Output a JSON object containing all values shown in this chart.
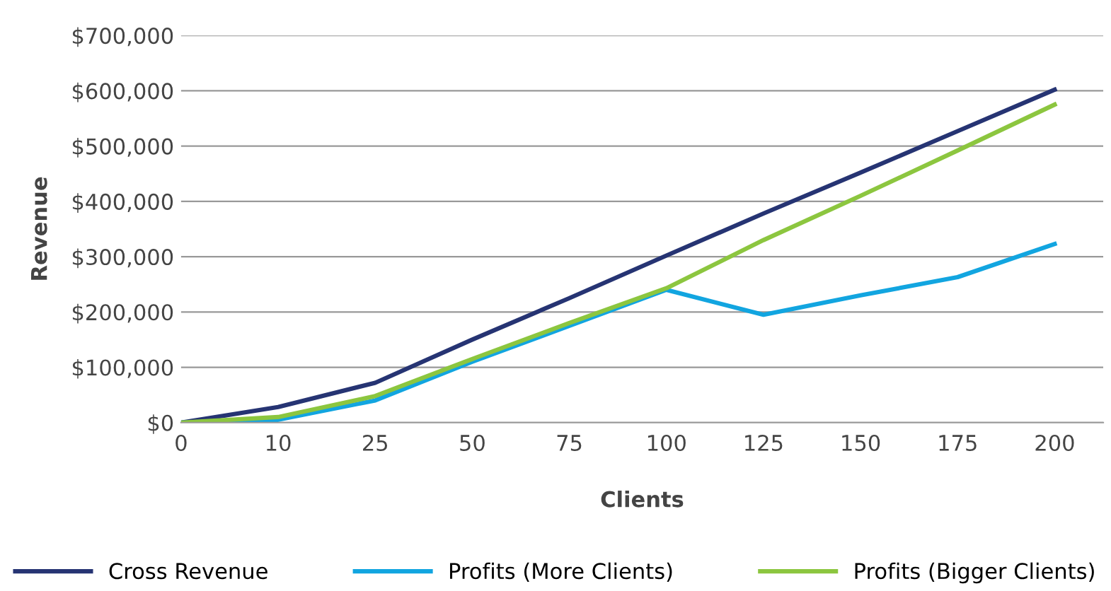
{
  "chart_data": {
    "type": "line",
    "xlabel": "Clients",
    "ylabel": "Revenue",
    "categories": [
      "0",
      "10",
      "25",
      "50",
      "75",
      "100",
      "125",
      "150",
      "175",
      "200"
    ],
    "series": [
      {
        "name": "Cross Revenue",
        "color": "#263473",
        "values": [
          0,
          28000,
          72000,
          150000,
          225000,
          302000,
          378000,
          452000,
          527000,
          602000
        ]
      },
      {
        "name": "Profits (More Clients)",
        "color": "#12a5e0",
        "values": [
          0,
          5000,
          40000,
          110000,
          175000,
          240000,
          195000,
          230000,
          263000,
          323000
        ]
      },
      {
        "name": "Profits (Bigger Clients)",
        "color": "#8cc63f",
        "values": [
          0,
          10000,
          48000,
          115000,
          180000,
          243000,
          330000,
          410000,
          492000,
          575000
        ]
      }
    ],
    "ylim": [
      0,
      700000
    ],
    "yticks": [
      {
        "value": 0,
        "label": "$0"
      },
      {
        "value": 100000,
        "label": "$100,000"
      },
      {
        "value": 200000,
        "label": "$200,000"
      },
      {
        "value": 300000,
        "label": "$300,000"
      },
      {
        "value": 400000,
        "label": "$400,000"
      },
      {
        "value": 500000,
        "label": "$500,000"
      },
      {
        "value": 600000,
        "label": "$600,000"
      },
      {
        "value": 700000,
        "label": "$700,000"
      }
    ],
    "grid": "y",
    "legend": "bottom",
    "marker": "none",
    "line_style": "solid"
  }
}
